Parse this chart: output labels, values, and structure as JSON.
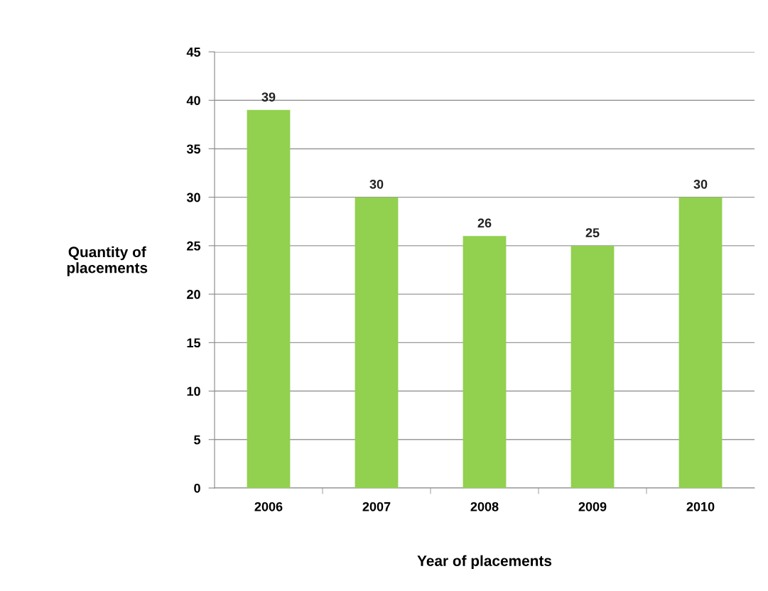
{
  "chart_data": {
    "type": "bar",
    "xlabel": "Year of placements",
    "ylabel": "Quantity of\nplacements",
    "categories": [
      "2006",
      "2007",
      "2008",
      "2009",
      "2010"
    ],
    "values": [
      39,
      30,
      26,
      25,
      30
    ],
    "color": "#92d050",
    "ylim": [
      0,
      45
    ],
    "yticks": [
      0,
      5,
      10,
      15,
      20,
      25,
      30,
      35,
      40,
      45
    ],
    "grid": "y",
    "data_labels": true
  }
}
